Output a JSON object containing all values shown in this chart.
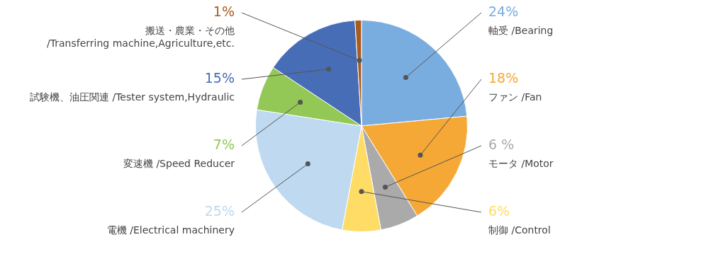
{
  "chart_data": {
    "type": "pie",
    "categories": [
      "軸受 /Bearing",
      "ファン /Fan",
      "モータ /Motor",
      "制御 /Control",
      "電機 /Electrical machinery",
      "変速機 /Speed Reducer",
      "試験機、油圧関連 /Tester system,Hydraulic",
      "搬送・農業・その他 /Transferring machine,Agriculture,etc."
    ],
    "values": [
      24,
      18,
      6,
      6,
      25,
      7,
      15,
      1
    ],
    "colors": [
      "#7aaddf",
      "#f5a835",
      "#aaaaaa",
      "#fedc65",
      "#bed9f0",
      "#93c756",
      "#476db6",
      "#a85b1f"
    ],
    "value_labels": [
      "24%",
      "18%",
      "6 %",
      "6%",
      "25%",
      "7%",
      "15%",
      "1%"
    ]
  }
}
